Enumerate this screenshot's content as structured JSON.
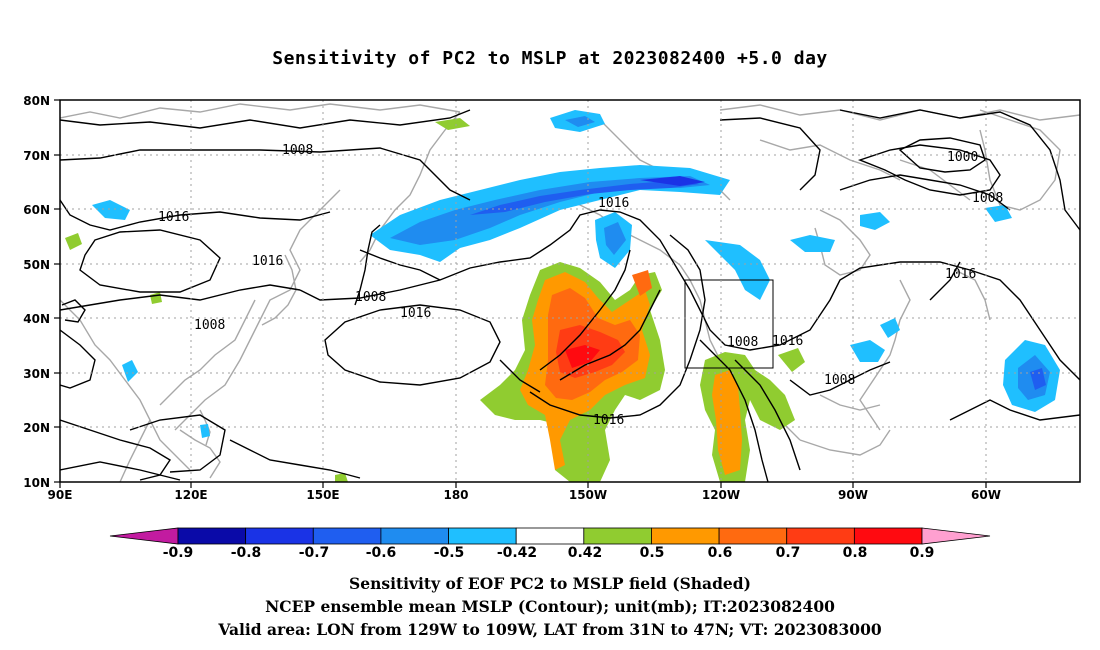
{
  "title": "Sensitivity of PC2 to MSLP at 2023082400 +5.0 day",
  "lon_labels": [
    "90E",
    "120E",
    "150E",
    "180",
    "150W",
    "120W",
    "90W",
    "60W"
  ],
  "lat_labels": [
    "80N",
    "70N",
    "60N",
    "50N",
    "40N",
    "30N",
    "20N",
    "10N"
  ],
  "contour_labels": [
    {
      "id": "c1008-a",
      "text": "1008"
    },
    {
      "id": "c1016-a",
      "text": "1016"
    },
    {
      "id": "c1016-b",
      "text": "1016"
    },
    {
      "id": "c1008-b",
      "text": "1008"
    },
    {
      "id": "c1008-c",
      "text": "1008"
    },
    {
      "id": "c1016-c",
      "text": "1016"
    },
    {
      "id": "c1016-d",
      "text": "1016"
    },
    {
      "id": "c1016-e",
      "text": "1016"
    },
    {
      "id": "c1008-d",
      "text": "1008"
    },
    {
      "id": "c1016-f",
      "text": "1016"
    },
    {
      "id": "c1008-e",
      "text": "1008"
    },
    {
      "id": "c1000-a",
      "text": "1000"
    },
    {
      "id": "c1008-f",
      "text": "1008"
    },
    {
      "id": "c1016-g",
      "text": "1016"
    }
  ],
  "colorbar": {
    "labels": [
      "-0.9",
      "-0.8",
      "-0.7",
      "-0.6",
      "-0.5",
      "-0.42",
      "0.42",
      "0.5",
      "0.6",
      "0.7",
      "0.8",
      "0.9"
    ],
    "colors": [
      "#c21ba0",
      "#0a0aa8",
      "#1a33e6",
      "#1f5ef0",
      "#1f8cf0",
      "#1fbfff",
      "#ffffff",
      "#90cc30",
      "#ff9900",
      "#ff6a10",
      "#ff3c14",
      "#ff0a10",
      "#ffa0d0"
    ]
  },
  "captions": [
    "Sensitivity of EOF PC2 to MSLP field (Shaded)",
    "NCEP ensemble mean MSLP (Contour); unit(mb); IT:2023082400",
    "Valid area: LON from 129W to 109W, LAT from 31N to 47N; VT: 2023083000"
  ]
}
